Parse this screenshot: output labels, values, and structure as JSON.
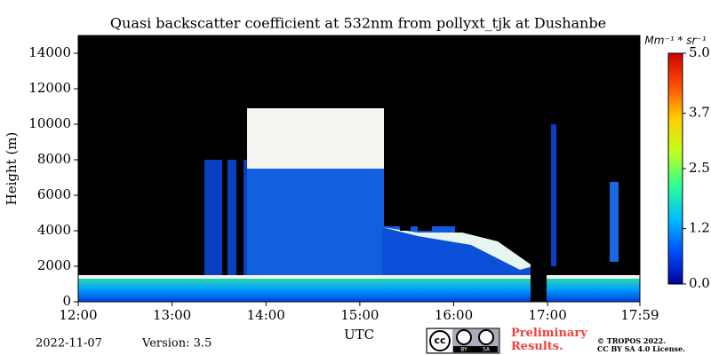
{
  "chart_data": {
    "type": "heatmap",
    "title": "Quasi backscatter coefficient at 532nm from pollyxt_tjk at Dushanbe",
    "ylabel": "Height (m)",
    "xlabel": "UTC",
    "xlim": [
      12,
      17.9833
    ],
    "xticks": [
      {
        "value": 12,
        "label": "12:00"
      },
      {
        "value": 13,
        "label": "13:00"
      },
      {
        "value": 14,
        "label": "14:00"
      },
      {
        "value": 15,
        "label": "15:00"
      },
      {
        "value": 16,
        "label": "16:00"
      },
      {
        "value": 17,
        "label": "17:00"
      },
      {
        "value": 17.9833,
        "label": "17:59"
      }
    ],
    "ylim": [
      0,
      15000
    ],
    "yticks": [
      0,
      2000,
      4000,
      6000,
      8000,
      10000,
      12000,
      14000
    ],
    "colorbar": {
      "label": "Mm⁻¹ * sr⁻¹",
      "lim": [
        0,
        5
      ],
      "ticks": [
        {
          "value": 0,
          "label": "0.0"
        },
        {
          "value": 1.2,
          "label": "1.2"
        },
        {
          "value": 2.5,
          "label": "2.5"
        },
        {
          "value": 3.7,
          "label": "3.7"
        },
        {
          "value": 5,
          "label": "5.0"
        }
      ],
      "colors": [
        "#0000a0",
        "#0050ff",
        "#00c0ff",
        "#30ff90",
        "#c0ff20",
        "#ffd000",
        "#ff5000",
        "#d00000"
      ]
    },
    "date": "2022-11-07",
    "version": "Version: 3.5",
    "badge": [
      "BY",
      "SA"
    ],
    "notice": "Preliminary Results.",
    "copyright": "© TROPOS 2022.",
    "license": "CC BY SA 4.0 License."
  }
}
